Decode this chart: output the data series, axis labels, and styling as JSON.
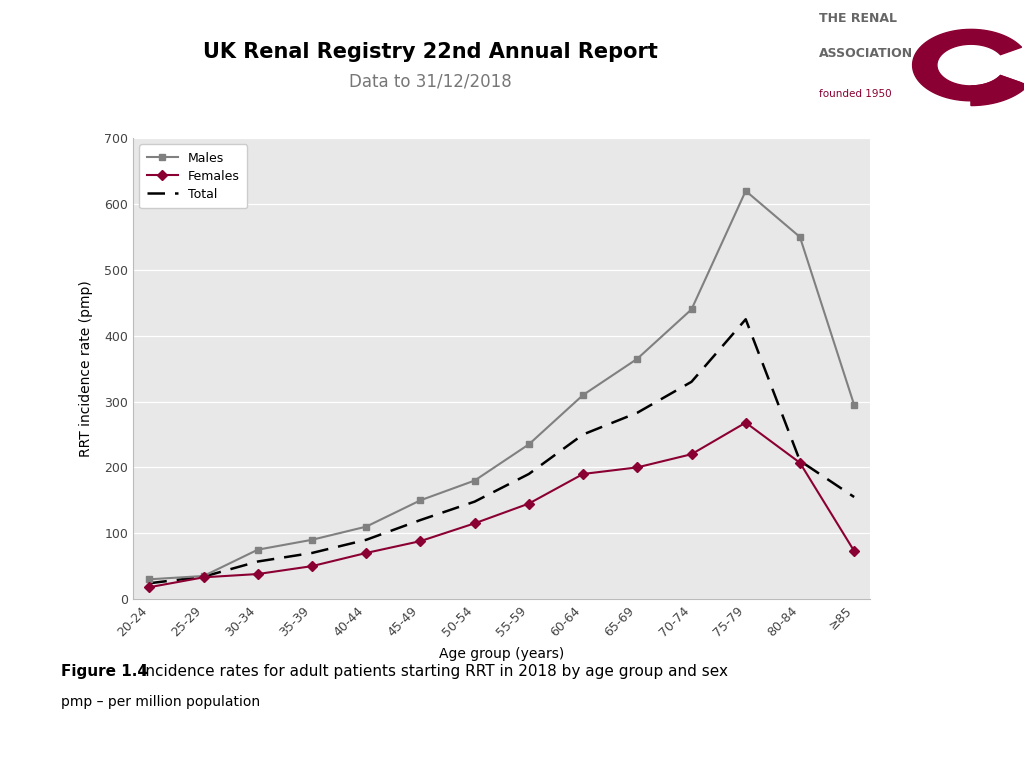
{
  "title": "UK Renal Registry 22nd Annual Report",
  "subtitle": "Data to 31/12/2018",
  "figure_caption_bold": "Figure 1.4",
  "figure_caption": " Incidence rates for adult patients starting RRT in 2018 by age group and sex",
  "figure_subcaption": "pmp – per million population",
  "age_groups": [
    "20-24",
    "25-29",
    "30-34",
    "35-39",
    "40-44",
    "45-49",
    "50-54",
    "55-59",
    "60-64",
    "65-69",
    "70-74",
    "75-79",
    "80-84",
    "≥85"
  ],
  "males": [
    30,
    35,
    75,
    90,
    110,
    150,
    180,
    235,
    310,
    365,
    440,
    620,
    550,
    295
  ],
  "females": [
    18,
    33,
    38,
    50,
    70,
    88,
    115,
    145,
    190,
    200,
    220,
    268,
    207,
    73
  ],
  "total": [
    24,
    34,
    57,
    70,
    90,
    120,
    148,
    190,
    250,
    283,
    330,
    425,
    210,
    155
  ],
  "males_color": "#808080",
  "females_color": "#8B0032",
  "total_color": "#000000",
  "plot_bg_color": "#e8e8e8",
  "ylabel": "RRT incidence rate (pmp)",
  "xlabel": "Age group (years)",
  "ylim": [
    0,
    700
  ],
  "yticks": [
    0,
    100,
    200,
    300,
    400,
    500,
    600,
    700
  ],
  "title_fontsize": 15,
  "subtitle_fontsize": 12,
  "axis_label_fontsize": 10,
  "tick_fontsize": 9,
  "legend_fontsize": 9,
  "caption_bold_fontsize": 11,
  "caption_fontsize": 11,
  "subcaption_fontsize": 10
}
